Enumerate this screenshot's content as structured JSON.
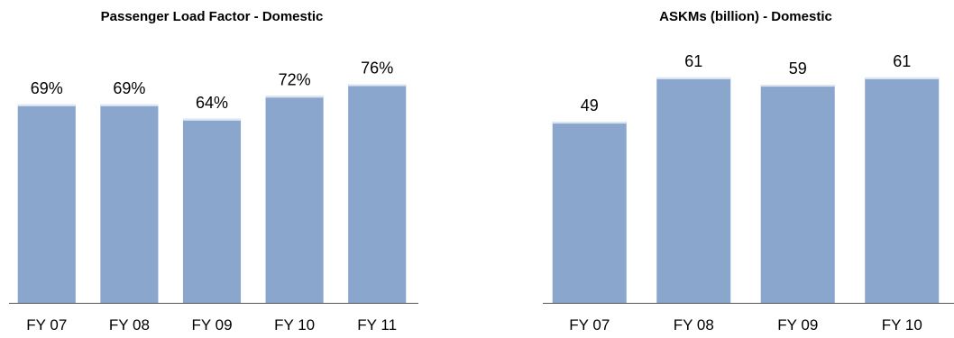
{
  "chart_data": [
    {
      "type": "bar",
      "title": "Passenger Load Factor  - Domestic",
      "xlabel": "",
      "ylabel": "",
      "categories": [
        "FY 07",
        "FY 08",
        "FY 09",
        "FY 10",
        "FY 11"
      ],
      "values": [
        69,
        69,
        64,
        72,
        76
      ],
      "data_labels": [
        "69%",
        "69%",
        "64%",
        "72%",
        "76%"
      ],
      "ylim": [
        0,
        100
      ],
      "grid": false,
      "bar_color": "#8aa6cc"
    },
    {
      "type": "bar",
      "title": "ASKMs (billion) - Domestic",
      "xlabel": "",
      "ylabel": "",
      "categories": [
        "FY 07",
        "FY 08",
        "FY 09",
        "FY 10"
      ],
      "values": [
        49,
        61,
        59,
        61
      ],
      "data_labels": [
        "49",
        "61",
        "59",
        "61"
      ],
      "ylim": [
        0,
        80
      ],
      "grid": false,
      "bar_color": "#8aa6cc"
    }
  ]
}
